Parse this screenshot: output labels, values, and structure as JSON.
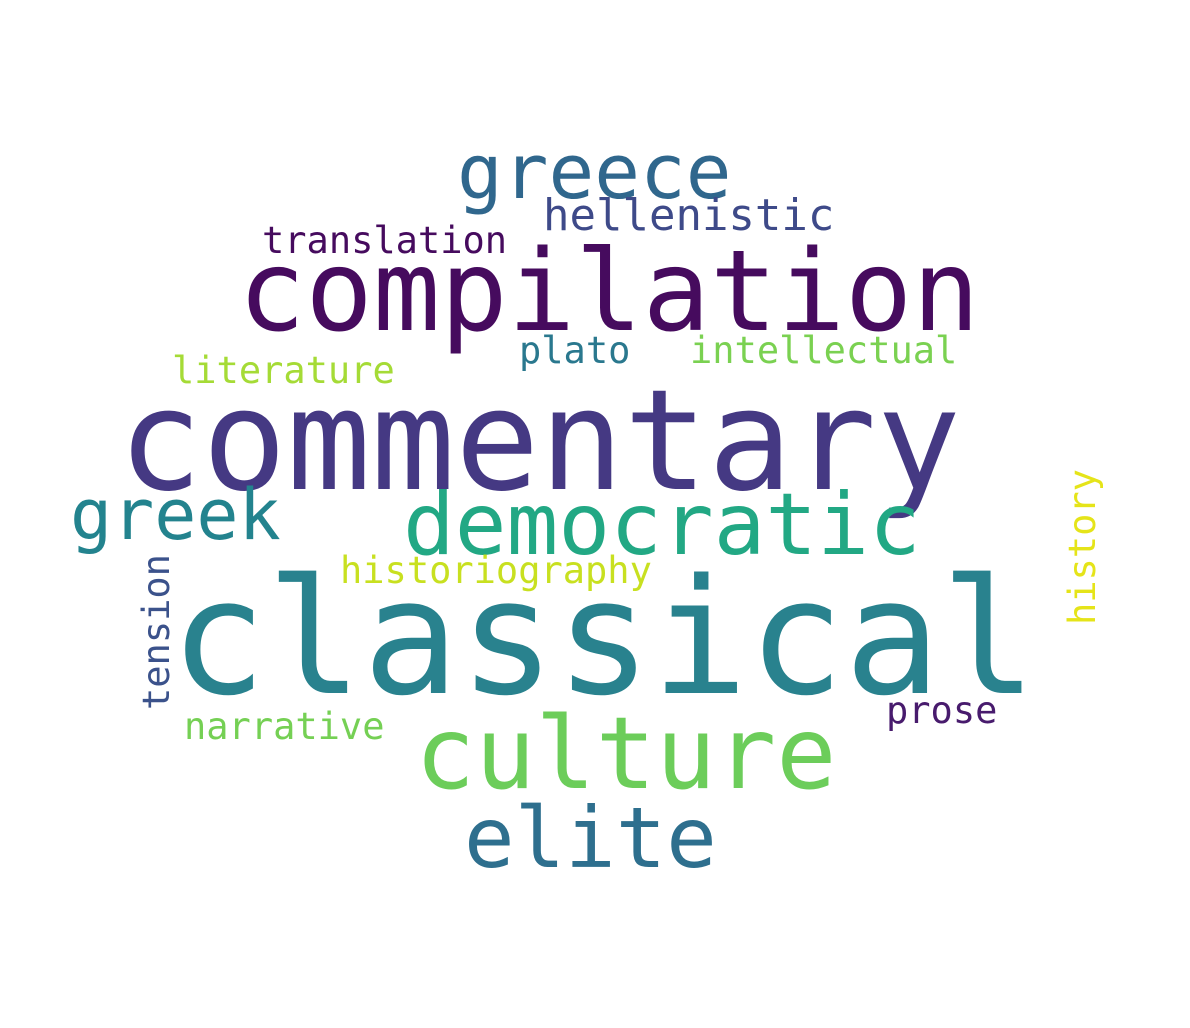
{
  "cloud": {
    "background": "#ffffff",
    "words": {
      "commentary": {
        "text": "commentary",
        "color": "#453983"
      },
      "classical": {
        "text": "classical",
        "color": "#29828e"
      },
      "compilation": {
        "text": "compilation",
        "color": "#460b5e"
      },
      "culture": {
        "text": "culture",
        "color": "#6ccd5a"
      },
      "democratic": {
        "text": "democratic",
        "color": "#22a884"
      },
      "greece": {
        "text": "greece",
        "color": "#30678d"
      },
      "elite": {
        "text": "elite",
        "color": "#2e6f8e"
      },
      "greek": {
        "text": "greek",
        "color": "#23838e"
      },
      "hellenistic": {
        "text": "hellenistic",
        "color": "#3e4a89"
      },
      "translation": {
        "text": "translation",
        "color": "#460b5e"
      },
      "plato": {
        "text": "plato",
        "color": "#2a788e"
      },
      "intellectual": {
        "text": "intellectual",
        "color": "#7ad151"
      },
      "literature": {
        "text": "literature",
        "color": "#a5db36"
      },
      "historiography": {
        "text": "historiography",
        "color": "#c8e020"
      },
      "narrative": {
        "text": "narrative",
        "color": "#75d054"
      },
      "prose": {
        "text": "prose",
        "color": "#481b6d"
      },
      "tension": {
        "text": "tension",
        "color": "#3b528b"
      },
      "history": {
        "text": "history",
        "color": "#e5e419"
      }
    }
  }
}
